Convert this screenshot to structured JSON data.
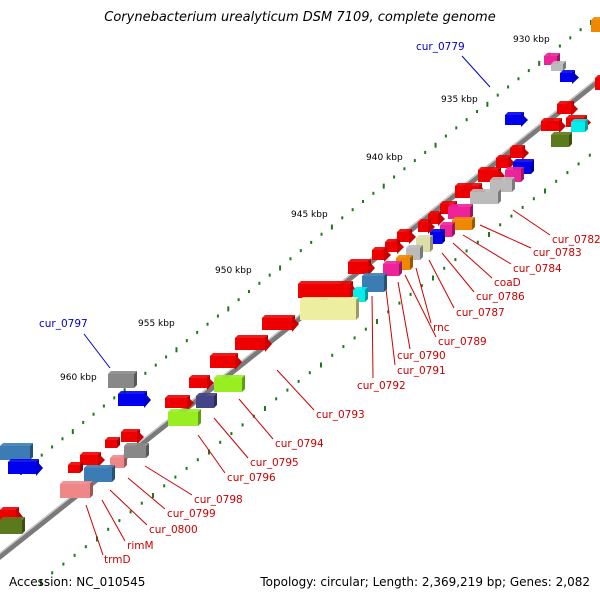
{
  "title": "Corynebacterium urealyticum DSM 7109, complete genome",
  "footer": {
    "accession": "Accession: NC_010545",
    "topology": "Topology: circular; Length: 2,369,219 bp; Genes: 2,082"
  },
  "scale_labels": [
    "930 kbp",
    "935 kbp",
    "940 kbp",
    "945 kbp",
    "950 kbp",
    "955 kbp",
    "960 kbp"
  ],
  "colors": {
    "red": "#ee0000",
    "blue": "#0000ee",
    "gray": "#888888",
    "pink": "#ee8888",
    "steelblue": "#3c7cb4",
    "yellowgreen": "#99ee22",
    "khaki": "#eeeea0",
    "magenta": "#ee2299",
    "orange": "#ee8800",
    "cyan": "#00eeee",
    "olive": "#5b7a1e",
    "slate": "#444488",
    "silver": "#bbbbbb",
    "tan": "#ddddaa"
  },
  "gene_labels": [
    {
      "text": "cur_0779",
      "color": "#0000cc"
    },
    {
      "text": "cur_0797",
      "color": "#0000cc"
    },
    {
      "text": "cur_0782",
      "color": "#cc0000"
    },
    {
      "text": "cur_0783",
      "color": "#cc0000"
    },
    {
      "text": "cur_0784",
      "color": "#cc0000"
    },
    {
      "text": "coaD",
      "color": "#cc0000"
    },
    {
      "text": "cur_0786",
      "color": "#cc0000"
    },
    {
      "text": "cur_0787",
      "color": "#cc0000"
    },
    {
      "text": "rnc",
      "color": "#cc0000"
    },
    {
      "text": "cur_0789",
      "color": "#cc0000"
    },
    {
      "text": "cur_0790",
      "color": "#cc0000"
    },
    {
      "text": "cur_0791",
      "color": "#cc0000"
    },
    {
      "text": "cur_0792",
      "color": "#cc0000"
    },
    {
      "text": "cur_0793",
      "color": "#cc0000"
    },
    {
      "text": "cur_0794",
      "color": "#cc0000"
    },
    {
      "text": "cur_0795",
      "color": "#cc0000"
    },
    {
      "text": "cur_0796",
      "color": "#cc0000"
    },
    {
      "text": "cur_0798",
      "color": "#cc0000"
    },
    {
      "text": "cur_0799",
      "color": "#cc0000"
    },
    {
      "text": "cur_0800",
      "color": "#cc0000"
    },
    {
      "text": "rimM",
      "color": "#cc0000"
    },
    {
      "text": "trmD",
      "color": "#cc0000"
    }
  ]
}
